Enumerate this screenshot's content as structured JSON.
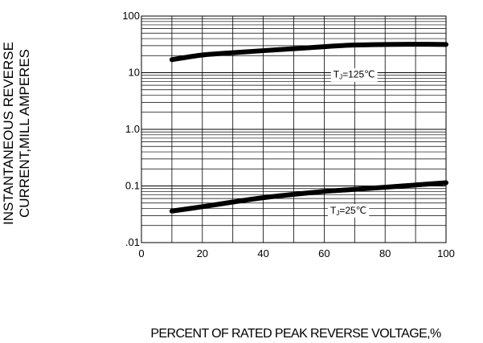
{
  "chart_data": {
    "type": "line",
    "title": "",
    "xlabel": "PERCENT  OF  RATED PEAK REVERSE VOLTAGE,%",
    "ylabel_lines": [
      "INSTANTANEOUS REVERSE",
      "CURRENT,MILL AMPERES"
    ],
    "x_scale": "linear",
    "y_scale": "log",
    "xlim": [
      0,
      100
    ],
    "ylim": [
      0.01,
      100
    ],
    "x_ticks": [
      0,
      20,
      40,
      60,
      80,
      100
    ],
    "x_tick_labels": [
      "0",
      "20",
      "40",
      "60",
      "80",
      "100"
    ],
    "y_ticks": [
      0.01,
      0.1,
      1,
      10,
      100
    ],
    "y_tick_labels": [
      ".01",
      "0.1",
      "1.0",
      "10",
      "100"
    ],
    "grid": true,
    "series": [
      {
        "name": "TJ=125℃",
        "label_parts": [
          "T",
          "J",
          "=125℃"
        ],
        "label_at": [
          63,
          9
        ],
        "color": "#000000",
        "x": [
          10,
          20,
          30,
          40,
          50,
          60,
          70,
          80,
          90,
          100
        ],
        "y": [
          17,
          20.5,
          22.5,
          24.5,
          26.5,
          28.8,
          30.8,
          31.5,
          31.8,
          31.5
        ]
      },
      {
        "name": "TJ=25℃",
        "label_parts": [
          "T",
          "J",
          "=25℃"
        ],
        "label_at": [
          62,
          0.036
        ],
        "color": "#000000",
        "x": [
          10,
          20,
          30,
          40,
          50,
          60,
          70,
          80,
          90,
          100
        ],
        "y": [
          0.036,
          0.043,
          0.052,
          0.062,
          0.071,
          0.08,
          0.087,
          0.095,
          0.104,
          0.114
        ]
      }
    ]
  }
}
